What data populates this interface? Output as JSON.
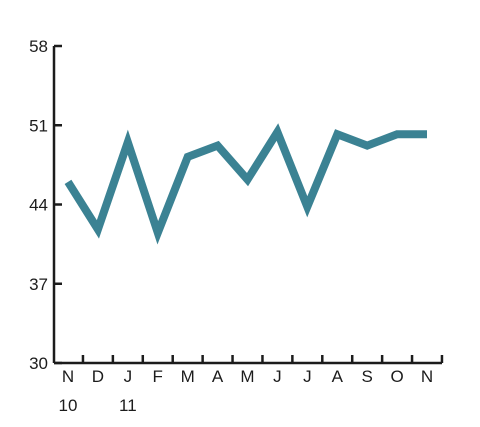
{
  "chart_data": {
    "type": "line",
    "title": "",
    "xlabel": "",
    "ylabel": "",
    "categories": [
      "N",
      "D",
      "J",
      "F",
      "M",
      "A",
      "M",
      "J",
      "J",
      "A",
      "S",
      "O",
      "N"
    ],
    "year_labels": [
      {
        "category_index": 0,
        "label": "10"
      },
      {
        "category_index": 2,
        "label": "11"
      }
    ],
    "series": [
      {
        "values": [
          46,
          41.8,
          49.5,
          41.5,
          48.2,
          49.2,
          46.2,
          50.4,
          43.8,
          50.2,
          49.2,
          50.2,
          50.2
        ],
        "color": "#3b8293"
      }
    ],
    "ylim": [
      30,
      58
    ],
    "yticks": [
      30,
      37,
      44,
      51,
      58
    ],
    "grid": false,
    "legend": "none"
  }
}
